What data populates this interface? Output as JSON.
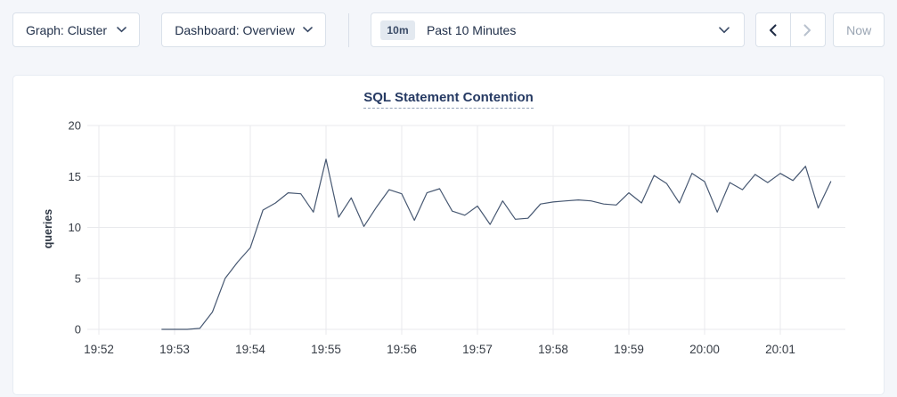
{
  "toolbar": {
    "graph_dropdown": {
      "text": "Graph: Cluster"
    },
    "dashboard_dropdown": {
      "text": "Dashboard: Overview"
    },
    "time_selector": {
      "badge": "10m",
      "label": "Past 10 Minutes"
    },
    "now_label": "Now"
  },
  "icons": {
    "graph_dropdown_caret": "chevron-down",
    "dashboard_dropdown_caret": "chevron-down",
    "time_selector_caret": "chevron-down",
    "time_backward": "chevron-left",
    "time_forward": "chevron-right"
  },
  "colors": {
    "page_bg": "#f4f6fa",
    "panel_border": "#e7ecf3",
    "grid": "#e9eaed",
    "title": "#263a63",
    "text": "#21304a",
    "tick_text": "#363c45",
    "disabled_icon": "#b9c2ce",
    "disabled_text": "#9aa5b3",
    "line": "#475872",
    "badge_bg": "#e3e9f0"
  },
  "chart_data": {
    "type": "line",
    "title": "SQL Statement Contention",
    "xlabel": "",
    "ylabel": "queries",
    "ylim": [
      0,
      20
    ],
    "yticks": [
      0,
      5,
      10,
      15,
      20
    ],
    "xticks": [
      "19:52",
      "19:53",
      "19:54",
      "19:55",
      "19:56",
      "19:57",
      "19:58",
      "19:59",
      "20:00",
      "20:01"
    ],
    "grid": true,
    "legend_position": "none",
    "series": [
      {
        "name": "queries",
        "color": "#475872",
        "x": [
          "19:52:50",
          "19:53:00",
          "19:53:10",
          "19:53:20",
          "19:53:30",
          "19:53:40",
          "19:53:50",
          "19:54:00",
          "19:54:10",
          "19:54:20",
          "19:54:30",
          "19:54:40",
          "19:54:50",
          "19:55:00",
          "19:55:10",
          "19:55:20",
          "19:55:30",
          "19:55:40",
          "19:55:50",
          "19:56:00",
          "19:56:10",
          "19:56:20",
          "19:56:30",
          "19:56:40",
          "19:56:50",
          "19:57:00",
          "19:57:10",
          "19:57:20",
          "19:57:30",
          "19:57:40",
          "19:57:50",
          "19:58:00",
          "19:58:10",
          "19:58:20",
          "19:58:30",
          "19:58:40",
          "19:58:50",
          "19:59:00",
          "19:59:10",
          "19:59:20",
          "19:59:30",
          "19:59:40",
          "19:59:50",
          "20:00:00",
          "20:00:10",
          "20:00:20",
          "20:00:30",
          "20:00:40",
          "20:00:50",
          "20:01:00",
          "20:01:10",
          "20:01:20",
          "20:01:30",
          "20:01:40"
        ],
        "values": [
          0,
          0,
          0,
          0.1,
          1.7,
          5,
          6.6,
          8,
          11.7,
          12.4,
          13.4,
          13.3,
          11.5,
          16.7,
          11,
          12.9,
          10.1,
          12,
          13.7,
          13.3,
          10.7,
          13.4,
          13.8,
          11.6,
          11.2,
          12.1,
          10.3,
          12.6,
          10.8,
          10.9,
          12.3,
          12.5,
          12.6,
          12.7,
          12.6,
          12.3,
          12.2,
          13.4,
          12.4,
          15.1,
          14.3,
          12.4,
          15.3,
          14.5,
          11.5,
          14.4,
          13.7,
          15.2,
          14.4,
          15.3,
          14.6,
          16,
          11.9,
          14.5
        ]
      }
    ]
  }
}
